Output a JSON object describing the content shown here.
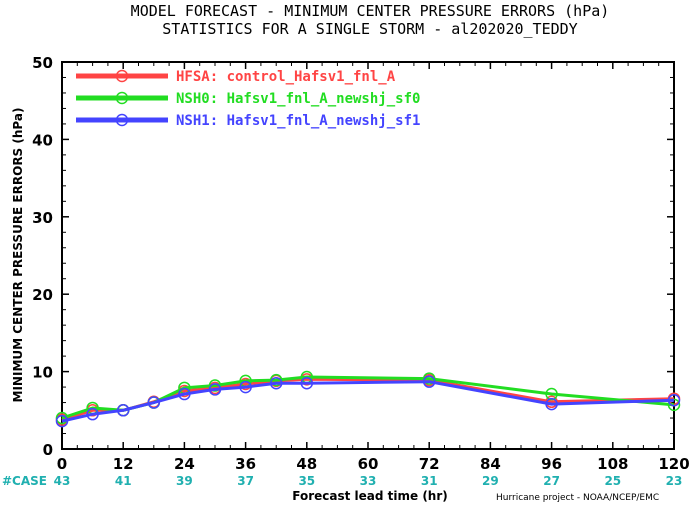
{
  "chart_data": {
    "type": "line",
    "title": "MODEL FORECAST - MINIMUM CENTER PRESSURE ERRORS (hPa)",
    "subtitle": "STATISTICS FOR A SINGLE STORM - al202020_TEDDY",
    "xlabel": "Forecast lead time (hr)",
    "ylabel": "MINIMUM CENTER PRESSURE ERRORS (hPa)",
    "xlim": [
      0,
      120
    ],
    "ylim": [
      0,
      50
    ],
    "xticks": [
      0,
      12,
      24,
      36,
      48,
      60,
      72,
      84,
      96,
      108,
      120
    ],
    "yticks": [
      0,
      10,
      20,
      30,
      40,
      50
    ],
    "legend_position": "top-left",
    "grid": false,
    "series": [
      {
        "name": "HFSA: control_Hafsv1_fnl_A",
        "color": "#ff4444",
        "x": [
          0,
          6,
          12,
          18,
          24,
          30,
          36,
          42,
          48,
          72,
          96,
          120
        ],
        "y": [
          3.8,
          5.0,
          5.0,
          6.1,
          7.5,
          7.9,
          8.4,
          8.8,
          9.0,
          8.9,
          6.1,
          6.5
        ]
      },
      {
        "name": "NSH0: Hafsv1_fnl_A_newshj_sf0",
        "color": "#22dd22",
        "x": [
          0,
          6,
          12,
          18,
          24,
          30,
          36,
          42,
          48,
          72,
          96,
          120
        ],
        "y": [
          4.0,
          5.3,
          5.0,
          6.0,
          7.9,
          8.2,
          8.8,
          8.9,
          9.3,
          9.1,
          7.1,
          5.7
        ]
      },
      {
        "name": "NSH1: Hafsv1_fnl_A_newshj_sf1",
        "color": "#4444ff",
        "x": [
          0,
          6,
          12,
          18,
          24,
          30,
          36,
          42,
          48,
          72,
          96,
          120
        ],
        "y": [
          3.6,
          4.5,
          5.0,
          6.0,
          7.1,
          7.7,
          8.0,
          8.5,
          8.5,
          8.7,
          5.8,
          6.3
        ]
      }
    ],
    "case_label": "#CASE",
    "case_x": [
      0,
      12,
      24,
      36,
      48,
      60,
      72,
      84,
      96,
      108,
      120
    ],
    "case_counts": [
      "43",
      "41",
      "39",
      "37",
      "35",
      "33",
      "31",
      "29",
      "27",
      "25",
      "23"
    ],
    "credit": "Hurricane project - NOAA/NCEP/EMC"
  }
}
